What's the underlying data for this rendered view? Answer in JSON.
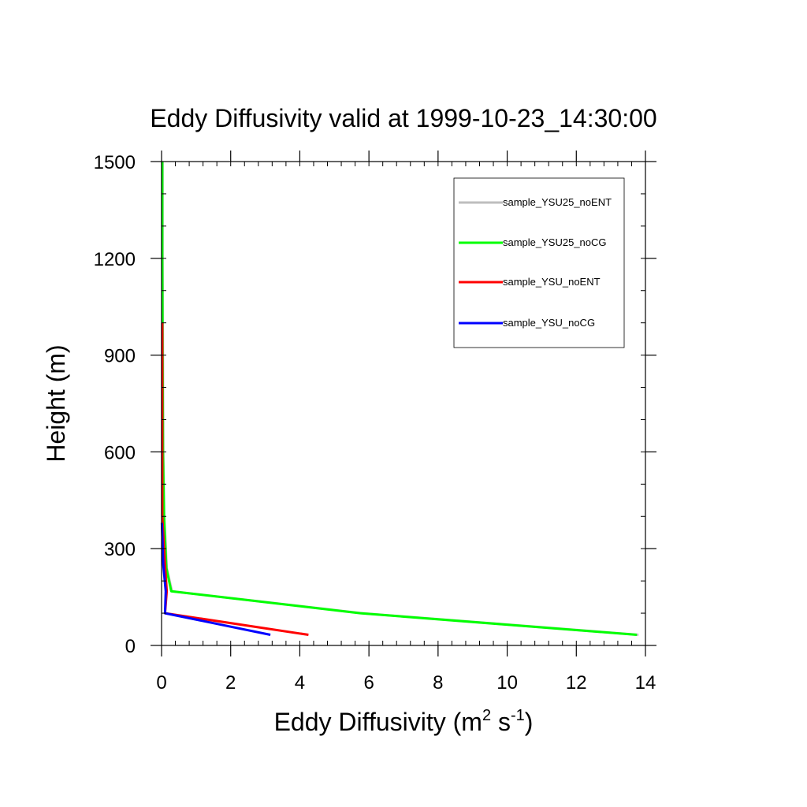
{
  "chart_data": {
    "type": "line",
    "title": "Eddy Diffusivity valid at 1999-10-23_14:30:00",
    "xlabel": {
      "main": "Eddy Diffusivity (m",
      "sup1": "2",
      "mid": " s",
      "sup2": "-1",
      "end": ")"
    },
    "ylabel": "Height (m)",
    "xlim": [
      0,
      14
    ],
    "ylim": [
      0,
      1500
    ],
    "xticks": [
      0,
      2,
      4,
      6,
      8,
      10,
      12,
      14
    ],
    "xtick_labels": [
      "0",
      "2",
      "4",
      "6",
      "8",
      "10",
      "12",
      "14"
    ],
    "yticks": [
      0,
      300,
      600,
      900,
      1200,
      1500
    ],
    "ytick_labels": [
      "0",
      "300",
      "600",
      "900",
      "1200",
      "1500"
    ],
    "x_minor_step": 0.4,
    "y_minor_step": 100,
    "legend_position": "top-right",
    "series": [
      {
        "name": "sample_YSU25_noENT",
        "color": "#bebebe",
        "x": [
          13.8,
          5.8,
          0.3,
          0.15,
          0.08,
          0.05,
          0.04,
          0.03,
          0.03
        ],
        "y": [
          33,
          100,
          168,
          240,
          400,
          600,
          900,
          1200,
          1500
        ]
      },
      {
        "name": "sample_YSU25_noCG",
        "color": "#00ff00",
        "x": [
          13.75,
          5.75,
          0.28,
          0.14,
          0.07,
          0.04,
          0.03,
          0.02,
          0.02
        ],
        "y": [
          33,
          100,
          168,
          240,
          400,
          600,
          900,
          1200,
          1500
        ]
      },
      {
        "name": "sample_YSU_noENT",
        "color": "#ff0000",
        "x": [
          4.25,
          0.1,
          0.15,
          0.1,
          0.02,
          0.02,
          0.02
        ],
        "y": [
          33,
          100,
          168,
          250,
          400,
          700,
          1000
        ]
      },
      {
        "name": "sample_YSU_noCG",
        "color": "#0000ff",
        "x": [
          3.15,
          0.1,
          0.12,
          0.05,
          0.01
        ],
        "y": [
          33,
          100,
          168,
          250,
          380
        ]
      }
    ]
  }
}
